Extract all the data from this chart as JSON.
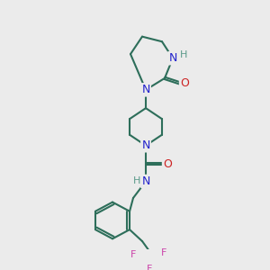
{
  "bg_color": "#ebebeb",
  "bond_color": "#2d6e5a",
  "bond_width": 1.5,
  "atom_colors": {
    "N": "#2222cc",
    "O": "#cc2222",
    "H": "#5a9a8a",
    "F": "#cc44aa",
    "C": "#2d6e5a"
  },
  "font_size_atom": 9,
  "font_size_H": 8
}
